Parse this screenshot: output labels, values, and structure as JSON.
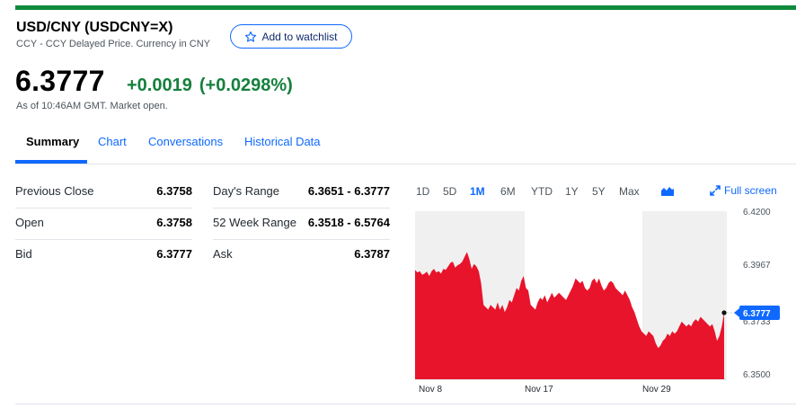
{
  "header": {
    "title": "USD/CNY (USDCNY=X)",
    "subtitle": "CCY - CCY Delayed Price. Currency in CNY",
    "watchlist_label": "Add to watchlist"
  },
  "quote": {
    "price": "6.3777",
    "change": "+0.0019",
    "change_pct": "(+0.0298%)",
    "as_of": "As of 10:46AM GMT. Market open.",
    "up_color": "#15803d"
  },
  "tabs": [
    {
      "label": "Summary",
      "active": true
    },
    {
      "label": "Chart"
    },
    {
      "label": "Conversations"
    },
    {
      "label": "Historical Data"
    }
  ],
  "stats_left": [
    {
      "label": "Previous Close",
      "value": "6.3758"
    },
    {
      "label": "Open",
      "value": "6.3758"
    },
    {
      "label": "Bid",
      "value": "6.3777"
    }
  ],
  "stats_right": [
    {
      "label": "Day's Range",
      "value": "6.3651 - 6.3777"
    },
    {
      "label": "52 Week Range",
      "value": "6.3518 - 6.5764"
    },
    {
      "label": "Ask",
      "value": "6.3787"
    }
  ],
  "ranges": [
    {
      "label": "1D"
    },
    {
      "label": "5D"
    },
    {
      "label": "1M",
      "active": true
    },
    {
      "label": "6M"
    },
    {
      "label": "YTD"
    },
    {
      "label": "1Y"
    },
    {
      "label": "5Y"
    },
    {
      "label": "Max"
    }
  ],
  "chart_toggle_icon": "area-chart-icon",
  "fullscreen_label": "Full screen",
  "chart_data": {
    "type": "area",
    "x_ticks": [
      "Nov 8",
      "Nov 17",
      "Nov 29"
    ],
    "y_ticks": [
      "6.4200",
      "6.3967",
      "6.3733",
      "6.3500"
    ],
    "ylim": [
      6.35,
      6.42
    ],
    "current_label": "6.3777",
    "current_value": 6.3777,
    "fill_color": "#e8142b",
    "marker_color": "#0f69ff",
    "values": [
      6.3955,
      6.3945,
      6.395,
      6.3935,
      6.394,
      6.3948,
      6.393,
      6.395,
      6.396,
      6.3945,
      6.395,
      6.394,
      6.396,
      6.3955,
      6.397,
      6.3985,
      6.399,
      6.3965,
      6.3975,
      6.398,
      6.399,
      6.401,
      6.403,
      6.4,
      6.396,
      6.398,
      6.397,
      6.395,
      6.39,
      6.381,
      6.38,
      6.379,
      6.381,
      6.38,
      6.379,
      6.382,
      6.379,
      6.381,
      6.378,
      6.38,
      6.383,
      6.382,
      6.385,
      6.388,
      6.387,
      6.391,
      6.393,
      6.388,
      6.387,
      6.381,
      6.38,
      6.379,
      6.382,
      6.384,
      6.383,
      6.385,
      6.382,
      6.384,
      6.386,
      6.384,
      6.385,
      6.386,
      6.385,
      6.384,
      6.383,
      6.385,
      6.387,
      6.389,
      6.392,
      6.391,
      6.39,
      6.391,
      6.388,
      6.387,
      6.388,
      6.391,
      6.392,
      6.39,
      6.392,
      6.389,
      6.387,
      6.388,
      6.39,
      6.391,
      6.39,
      6.388,
      6.387,
      6.386,
      6.385,
      6.387,
      6.385,
      6.383,
      6.38,
      6.378,
      6.375,
      6.372,
      6.37,
      6.369,
      6.368,
      6.37,
      6.369,
      6.368,
      6.365,
      6.363,
      6.364,
      6.366,
      6.367,
      6.369,
      6.368,
      6.37,
      6.369,
      6.37,
      6.372,
      6.374,
      6.373,
      6.372,
      6.373,
      6.372,
      6.374,
      6.375,
      6.374,
      6.376,
      6.375,
      6.374,
      6.373,
      6.372,
      6.373,
      6.37,
      6.366,
      6.368,
      6.372,
      6.3777
    ]
  }
}
